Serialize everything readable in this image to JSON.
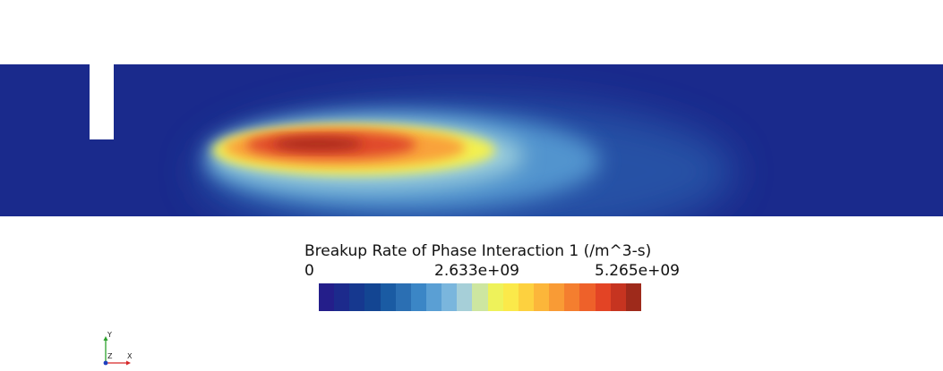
{
  "legend": {
    "title": "Breakup Rate of Phase Interaction 1 (/m^3-s)",
    "ticks": {
      "min": "0",
      "mid": "2.633e+09",
      "max": "5.265e+09"
    },
    "colormap": [
      "#241e8a",
      "#1c2a8c",
      "#16388f",
      "#134592",
      "#1a5ba3",
      "#2b6fb3",
      "#3b86c6",
      "#5a9fd4",
      "#7ab6dd",
      "#a6cfd8",
      "#cde6a0",
      "#eef25a",
      "#fbe94a",
      "#fdd13f",
      "#fcb63a",
      "#f99b35",
      "#f47e2f",
      "#ee612a",
      "#e34425",
      "#c63420",
      "#9e2a1b"
    ]
  },
  "axes": {
    "x": "X",
    "y": "Y",
    "z": "Z"
  },
  "colors": {
    "domain_background": "#1a2a8c",
    "axis_x": "#d62728",
    "axis_y": "#2ca02c",
    "axis_z": "#1f3fbf"
  }
}
